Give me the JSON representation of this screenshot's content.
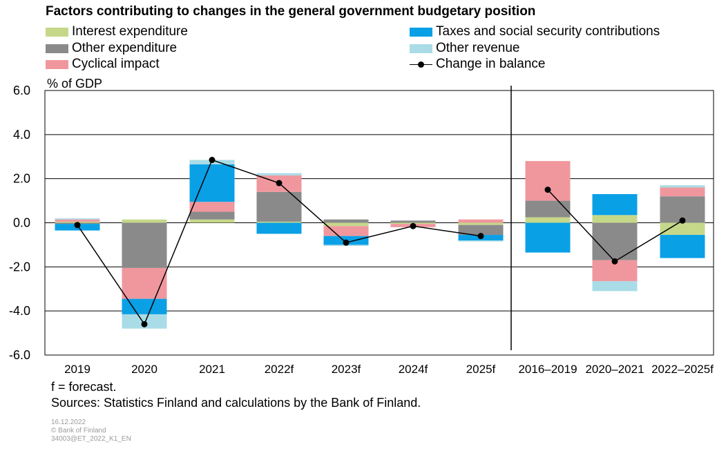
{
  "chart_data": {
    "type": "bar",
    "stacked": true,
    "title": "Factors contributing to changes in the general government budgetary position",
    "ylabel": "% of GDP",
    "xlabel": "",
    "ylim": [
      -6.0,
      6.0
    ],
    "yticks": [
      "6.0",
      "4.0",
      "2.0",
      "0.0",
      "-2.0",
      "-4.0",
      "-6.0"
    ],
    "grid": true,
    "legend_position": "top",
    "categories": [
      "2019",
      "2020",
      "2021",
      "2022f",
      "2023f",
      "2024f",
      "2025f",
      "2016–2019",
      "2020–2021",
      "2022–2025f"
    ],
    "series": [
      {
        "name": "Interest expenditure",
        "color": "#c5d88a",
        "values": [
          0.05,
          0.15,
          0.15,
          0.05,
          -0.15,
          -0.05,
          -0.1,
          0.25,
          0.35,
          -0.55
        ]
      },
      {
        "name": "Other expenditure",
        "color": "#8a8a8a",
        "values": [
          -0.05,
          -2.05,
          0.35,
          1.35,
          0.15,
          0.1,
          -0.45,
          0.75,
          -1.7,
          1.2
        ]
      },
      {
        "name": "Cyclical impact",
        "color": "#f0979e",
        "values": [
          0.1,
          -1.4,
          0.45,
          0.75,
          -0.45,
          -0.15,
          0.15,
          1.8,
          -0.95,
          0.4
        ]
      },
      {
        "name": "Taxes and social security contributions",
        "color": "#0aa0e6",
        "values": [
          -0.3,
          -0.7,
          1.7,
          -0.5,
          -0.4,
          0.0,
          -0.25,
          -1.35,
          0.95,
          -1.05
        ]
      },
      {
        "name": "Other revenue",
        "color": "#a9dce6",
        "values": [
          0.05,
          -0.65,
          0.2,
          0.1,
          -0.05,
          0.0,
          -0.05,
          0.0,
          -0.45,
          0.1
        ]
      },
      {
        "name": "Change in balance",
        "type": "line",
        "color": "#000000",
        "values": [
          -0.1,
          -4.6,
          2.85,
          1.8,
          -0.9,
          -0.15,
          -0.6,
          1.5,
          -1.75,
          0.1
        ]
      }
    ],
    "annotations": [
      "f = forecast.",
      "Sources: Statistics Finland and calculations by the Bank of Finland."
    ]
  },
  "meta": {
    "date": "16.12.2022",
    "copyright": "© Bank of Finland",
    "code": "34003@ET_2022_K1_EN"
  }
}
